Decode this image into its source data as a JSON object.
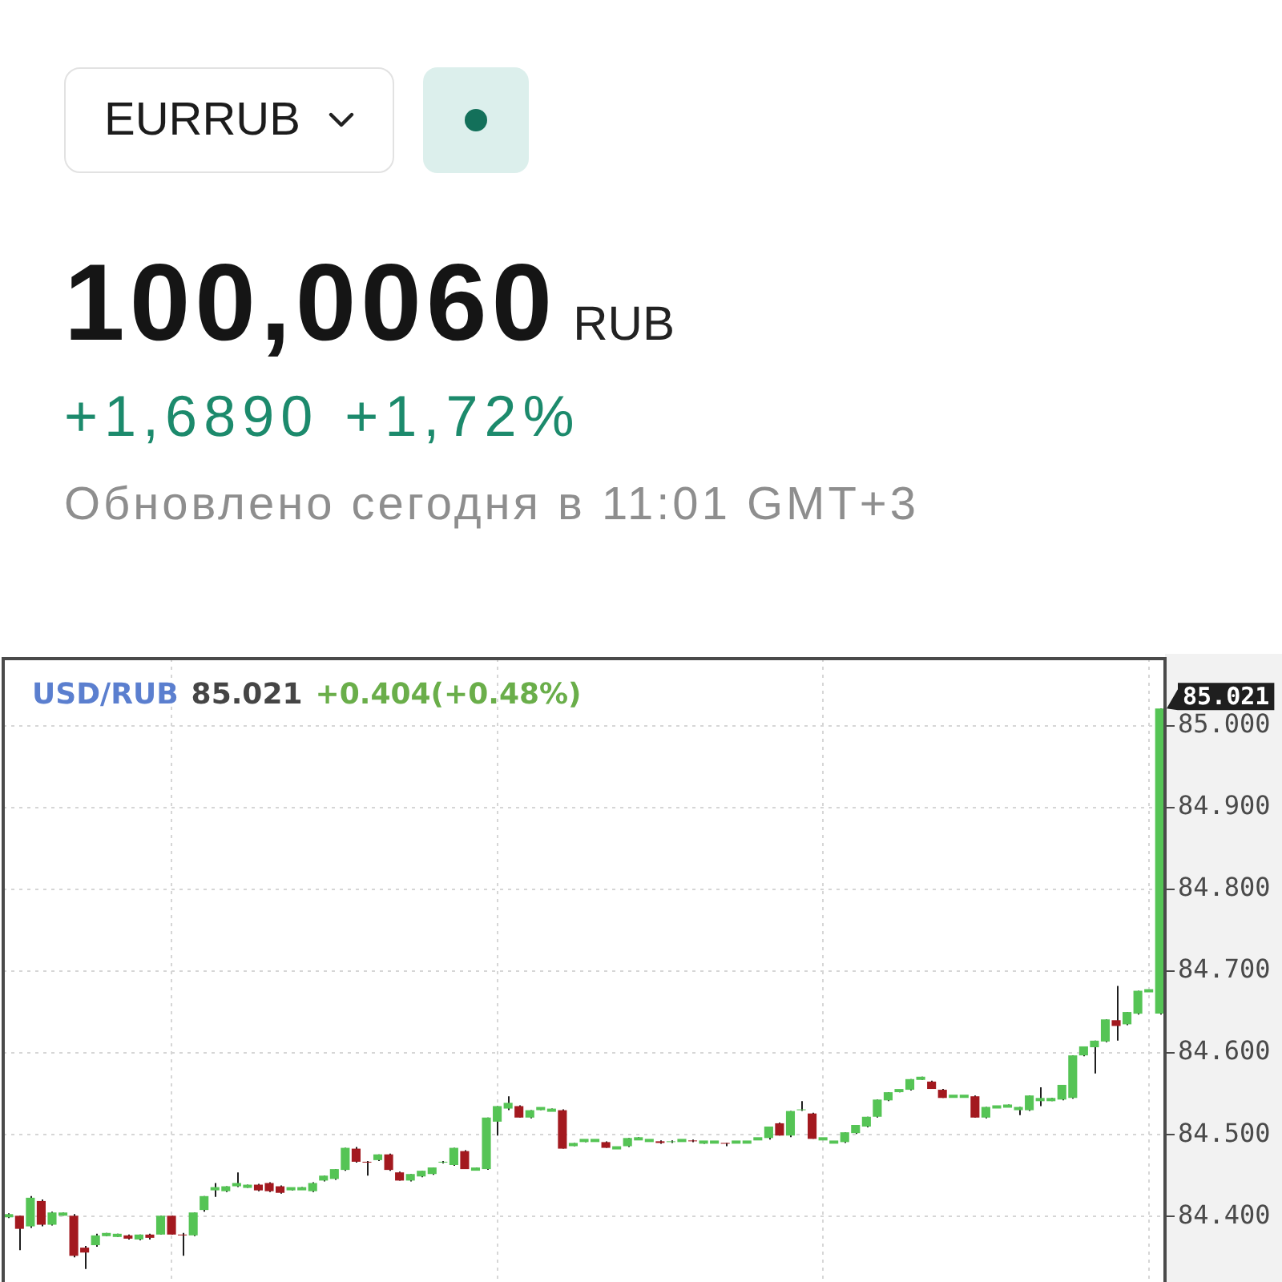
{
  "chart_data": [
    {
      "type": "other",
      "title": "EURRUB",
      "annotations": [
        "100,0060",
        "RUB",
        "+1,6890",
        "+1,72%",
        "Обновлено сегодня в 11:01 GMT+3"
      ]
    },
    {
      "type": "candlestick",
      "title": "USD/RUB",
      "annotations": [
        "85.021",
        "+0.404(+0.48%)",
        "85.021"
      ],
      "categories": [
        null,
        null,
        null,
        null,
        null,
        null,
        null,
        null,
        null,
        null,
        null,
        null,
        null,
        null,
        null,
        null,
        null,
        null,
        null,
        null,
        null,
        null,
        null,
        null,
        null,
        null,
        null,
        null,
        null,
        null,
        null,
        null,
        null,
        null,
        null,
        null,
        null,
        null,
        null,
        null,
        null,
        null,
        null,
        null,
        null,
        null,
        null,
        null,
        null,
        null,
        null,
        null,
        null,
        null,
        null,
        null,
        null,
        null,
        null,
        null,
        null,
        null,
        null,
        null,
        null,
        null,
        null,
        null,
        null,
        null,
        null,
        null,
        null,
        null,
        null,
        null,
        null,
        null,
        null,
        null,
        null,
        null,
        null,
        null,
        null,
        null,
        null,
        null,
        null,
        null,
        null,
        null,
        null,
        null,
        null,
        null,
        null,
        null,
        null,
        null,
        null,
        null,
        null,
        null,
        null,
        null,
        null
      ],
      "ohlc": [
        [
          84.401,
          84.404,
          84.398,
          84.401
        ],
        [
          84.401,
          84.401,
          84.359,
          84.385
        ],
        [
          84.388,
          84.425,
          84.386,
          84.423
        ],
        [
          84.419,
          84.421,
          84.388,
          84.39
        ],
        [
          84.39,
          84.406,
          84.389,
          84.405
        ],
        [
          84.403,
          84.405,
          84.401,
          84.403
        ],
        [
          84.401,
          84.403,
          84.35,
          84.352
        ],
        [
          84.362,
          84.364,
          84.336,
          84.356
        ],
        [
          84.365,
          84.379,
          84.363,
          84.377
        ],
        [
          84.378,
          84.38,
          84.376,
          84.378
        ],
        [
          84.377,
          84.379,
          84.375,
          84.377
        ],
        [
          84.377,
          84.378,
          84.372,
          84.373
        ],
        [
          84.372,
          84.378,
          84.371,
          84.378
        ],
        [
          84.378,
          84.379,
          84.372,
          84.374
        ],
        [
          84.378,
          84.401,
          84.378,
          84.401
        ],
        [
          84.401,
          84.401,
          84.378,
          84.378
        ],
        [
          84.378,
          84.38,
          84.352,
          84.377
        ],
        [
          84.377,
          84.405,
          84.376,
          84.405
        ],
        [
          84.408,
          84.425,
          84.406,
          84.425
        ],
        [
          84.434,
          84.441,
          84.424,
          84.434
        ],
        [
          84.431,
          84.437,
          84.43,
          84.437
        ],
        [
          84.437,
          84.454,
          84.436,
          84.441
        ],
        [
          84.437,
          84.439,
          84.435,
          84.437
        ],
        [
          84.439,
          84.44,
          84.431,
          84.432
        ],
        [
          84.441,
          84.442,
          84.43,
          84.431
        ],
        [
          84.437,
          84.438,
          84.428,
          84.429
        ],
        [
          84.434,
          84.435,
          84.432,
          84.434
        ],
        [
          84.434,
          84.436,
          84.433,
          84.434
        ],
        [
          84.431,
          84.442,
          84.43,
          84.441
        ],
        [
          84.444,
          84.45,
          84.443,
          84.45
        ],
        [
          84.446,
          84.458,
          84.445,
          84.458
        ],
        [
          84.457,
          84.484,
          84.456,
          84.484
        ],
        [
          84.483,
          84.485,
          84.466,
          84.467
        ],
        [
          84.467,
          84.468,
          84.45,
          84.466
        ],
        [
          84.469,
          84.476,
          84.468,
          84.476
        ],
        [
          84.476,
          84.477,
          84.456,
          84.457
        ],
        [
          84.454,
          84.455,
          84.444,
          84.444
        ],
        [
          84.444,
          84.452,
          84.443,
          84.452
        ],
        [
          84.449,
          84.456,
          84.448,
          84.456
        ],
        [
          84.452,
          84.46,
          84.451,
          84.46
        ],
        [
          84.466,
          84.468,
          84.465,
          84.467
        ],
        [
          84.463,
          84.484,
          84.462,
          84.484
        ],
        [
          84.48,
          84.481,
          84.458,
          84.458
        ],
        [
          84.458,
          84.46,
          84.457,
          84.458
        ],
        [
          84.458,
          84.521,
          84.457,
          84.521
        ],
        [
          84.516,
          84.535,
          84.499,
          84.535
        ],
        [
          84.532,
          84.547,
          84.53,
          84.539
        ],
        [
          84.535,
          84.536,
          84.521,
          84.521
        ],
        [
          84.521,
          84.53,
          84.52,
          84.53
        ],
        [
          84.532,
          84.533,
          84.53,
          84.532
        ],
        [
          84.53,
          84.532,
          84.529,
          84.53
        ],
        [
          84.53,
          84.531,
          84.483,
          84.483
        ],
        [
          84.488,
          84.49,
          84.486,
          84.488
        ],
        [
          84.493,
          84.494,
          84.491,
          84.493
        ],
        [
          84.493,
          84.494,
          84.492,
          84.493
        ],
        [
          84.491,
          84.492,
          84.484,
          84.484
        ],
        [
          84.484,
          84.485,
          84.483,
          84.484
        ],
        [
          84.486,
          84.496,
          84.485,
          84.496
        ],
        [
          84.495,
          84.497,
          84.494,
          84.495
        ],
        [
          84.493,
          84.494,
          84.492,
          84.493
        ],
        [
          84.492,
          84.493,
          84.489,
          84.49
        ],
        [
          84.491,
          84.493,
          84.49,
          84.492
        ],
        [
          84.493,
          84.494,
          84.492,
          84.493
        ],
        [
          84.493,
          84.494,
          84.491,
          84.492
        ],
        [
          84.491,
          84.492,
          84.489,
          84.491
        ],
        [
          84.491,
          84.492,
          84.49,
          84.491
        ],
        [
          84.49,
          84.49,
          84.486,
          84.489
        ],
        [
          84.491,
          84.492,
          84.49,
          84.491
        ],
        [
          84.491,
          84.492,
          84.49,
          84.491
        ],
        [
          84.495,
          84.496,
          84.494,
          84.495
        ],
        [
          84.496,
          84.51,
          84.494,
          84.51
        ],
        [
          84.514,
          84.515,
          84.499,
          84.499
        ],
        [
          84.499,
          84.529,
          84.497,
          84.529
        ],
        [
          84.53,
          84.541,
          84.529,
          84.531
        ],
        [
          84.526,
          84.527,
          84.495,
          84.495
        ],
        [
          84.495,
          84.496,
          84.494,
          84.495
        ],
        [
          84.491,
          84.492,
          84.49,
          84.491
        ],
        [
          84.491,
          84.503,
          84.49,
          84.503
        ],
        [
          84.502,
          84.512,
          84.501,
          84.512
        ],
        [
          84.51,
          84.522,
          84.509,
          84.522
        ],
        [
          84.522,
          84.543,
          84.521,
          84.543
        ],
        [
          84.542,
          84.552,
          84.541,
          84.552
        ],
        [
          84.554,
          84.555,
          84.552,
          84.554
        ],
        [
          84.555,
          84.568,
          84.554,
          84.568
        ],
        [
          84.569,
          84.571,
          84.567,
          84.569
        ],
        [
          84.565,
          84.566,
          84.556,
          84.556
        ],
        [
          84.555,
          84.556,
          84.545,
          84.545
        ],
        [
          84.547,
          84.548,
          84.546,
          84.547
        ],
        [
          84.547,
          84.548,
          84.546,
          84.547
        ],
        [
          84.547,
          84.548,
          84.521,
          84.521
        ],
        [
          84.521,
          84.534,
          84.52,
          84.534
        ],
        [
          84.534,
          84.535,
          84.533,
          84.534
        ],
        [
          84.535,
          84.537,
          84.534,
          84.535
        ],
        [
          84.532,
          84.534,
          84.524,
          84.532
        ],
        [
          84.53,
          84.548,
          84.529,
          84.548
        ],
        [
          84.543,
          84.558,
          84.535,
          84.543
        ],
        [
          84.543,
          84.545,
          84.541,
          84.543
        ],
        [
          84.543,
          84.561,
          84.542,
          84.561
        ],
        [
          84.545,
          84.597,
          84.544,
          84.597
        ],
        [
          84.597,
          84.608,
          84.596,
          84.608
        ],
        [
          84.607,
          84.615,
          84.575,
          84.615
        ],
        [
          84.614,
          84.641,
          84.613,
          84.641
        ],
        [
          84.64,
          84.682,
          84.615,
          84.633
        ],
        [
          84.635,
          84.65,
          84.634,
          84.65
        ],
        [
          84.648,
          84.676,
          84.647,
          84.676
        ],
        [
          84.676,
          84.677,
          84.675,
          84.676
        ],
        [
          84.648,
          85.021,
          84.647,
          85.021
        ]
      ],
      "colors": [
        "#55c455",
        "#a3191f",
        "#55c455",
        "#a3191f",
        "#55c455",
        "#55c455",
        "#a3191f",
        "#a3191f",
        "#55c455",
        "#55c455",
        "#55c455",
        "#a3191f",
        "#55c455",
        "#a3191f",
        "#55c455",
        "#a3191f",
        "#a3191f",
        "#55c455",
        "#55c455",
        "#55c455",
        "#55c455",
        "#55c455",
        "#55c455",
        "#a3191f",
        "#a3191f",
        "#a3191f",
        "#55c455",
        "#55c455",
        "#55c455",
        "#55c455",
        "#55c455",
        "#55c455",
        "#a3191f",
        "#a3191f",
        "#55c455",
        "#a3191f",
        "#a3191f",
        "#55c455",
        "#55c455",
        "#55c455",
        "#55c455",
        "#55c455",
        "#a3191f",
        "#55c455",
        "#55c455",
        "#55c455",
        "#55c455",
        "#a3191f",
        "#55c455",
        "#55c455",
        "#55c455",
        "#a3191f",
        "#55c455",
        "#55c455",
        "#55c455",
        "#a3191f",
        "#55c455",
        "#55c455",
        "#55c455",
        "#55c455",
        "#a3191f",
        "#55c455",
        "#55c455",
        "#a3191f",
        "#55c455",
        "#55c455",
        "#a3191f",
        "#55c455",
        "#55c455",
        "#55c455",
        "#55c455",
        "#a3191f",
        "#55c455",
        "#55c455",
        "#a3191f",
        "#55c455",
        "#55c455",
        "#55c455",
        "#55c455",
        "#55c455",
        "#55c455",
        "#55c455",
        "#55c455",
        "#55c455",
        "#55c455",
        "#a3191f",
        "#a3191f",
        "#55c455",
        "#55c455",
        "#a3191f",
        "#55c455",
        "#55c455",
        "#55c455",
        "#55c455",
        "#55c455",
        "#55c455",
        "#55c455",
        "#55c455",
        "#55c455",
        "#55c455",
        "#55c455",
        "#55c455",
        "#a3191f",
        "#55c455",
        "#55c455",
        "#55c455",
        "#55c455"
      ],
      "ylim": [
        84.32,
        85.082
      ],
      "yticks": [
        {
          "value": 84.4,
          "label": "84.400"
        },
        {
          "value": 84.5,
          "label": "84.500"
        },
        {
          "value": 84.6,
          "label": "84.600"
        },
        {
          "value": 84.7,
          "label": "84.700"
        },
        {
          "value": 84.8,
          "label": "84.800"
        },
        {
          "value": 84.9,
          "label": "84.900"
        },
        {
          "value": 85,
          "label": "85.000"
        }
      ],
      "grid": true
    }
  ]
}
